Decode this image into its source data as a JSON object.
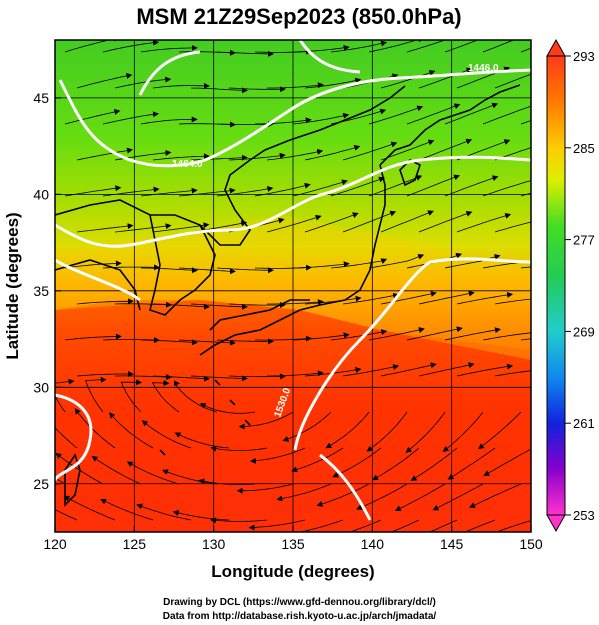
{
  "title": "MSM 21Z29Sep2023 (850.0hPa)",
  "x_axis": {
    "label": "Longitude (degrees)",
    "ticks": [
      "120",
      "125",
      "130",
      "135",
      "140",
      "145",
      "150"
    ],
    "range": [
      120,
      150
    ]
  },
  "y_axis": {
    "label": "Latitude  (degrees)",
    "ticks": [
      "25",
      "30",
      "35",
      "40",
      "45"
    ],
    "range": [
      22.5,
      48
    ]
  },
  "colorbar": {
    "ticks": [
      "293",
      "285",
      "277",
      "269",
      "261",
      "253"
    ],
    "range": [
      253,
      293
    ]
  },
  "contour_labels": [
    "1446.0",
    "1464.0",
    "1530.0"
  ],
  "credits": {
    "line1": "Drawing by DCL (https://www.gfd-dennou.org/library/dcl/)",
    "line2": "Data from http://database.rish.kyoto-u.ac.jp/arch/jmadata/"
  },
  "colors": {
    "cold": "#22cc22",
    "mid": "#eeee00",
    "warm": "#ff3300",
    "contour": "#ffffff"
  },
  "chart_data": {
    "type": "heatmap",
    "title": "MSM 21Z29Sep2023 (850.0hPa)",
    "xlabel": "Longitude (degrees)",
    "ylabel": "Latitude  (degrees)",
    "xlim": [
      120,
      150
    ],
    "ylim": [
      22.5,
      48
    ],
    "colorbar_range": [
      253,
      293
    ],
    "colorbar_ticks": [
      293,
      285,
      277,
      269,
      261,
      253
    ],
    "contour_labels": [
      "1446.0",
      "1464.0",
      "1530.0"
    ],
    "grid": true
  }
}
